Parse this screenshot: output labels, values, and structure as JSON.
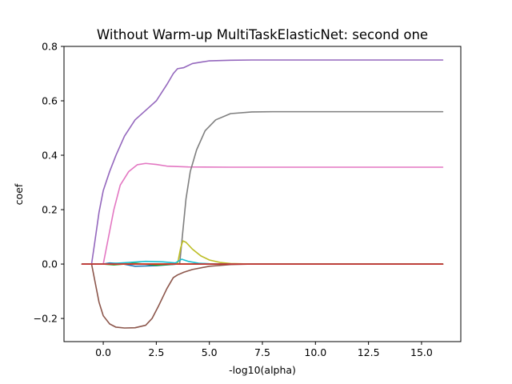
{
  "chart_data": {
    "type": "line",
    "title": "Without Warm-up MultiTaskElasticNet: second one",
    "xlabel": "-log10(alpha)",
    "ylabel": "coef",
    "xlim": [
      -1.85,
      16.85
    ],
    "ylim": [
      -0.285,
      0.8
    ],
    "grid": false,
    "legend": "none",
    "xticks": [
      0.0,
      2.5,
      5.0,
      7.5,
      10.0,
      12.5,
      15.0
    ],
    "xtick_labels": [
      "0.0",
      "2.5",
      "5.0",
      "7.5",
      "10.0",
      "12.5",
      "15.0"
    ],
    "yticks": [
      -0.2,
      0.0,
      0.2,
      0.4,
      0.6,
      0.8
    ],
    "ytick_labels": [
      "−0.2",
      "0.0",
      "0.2",
      "0.4",
      "0.6",
      "0.8"
    ],
    "series": [
      {
        "color": "#1f77b4",
        "points": [
          [
            -1,
            0
          ],
          [
            0,
            0
          ],
          [
            0.3,
            0.004
          ],
          [
            0.8,
            0.002
          ],
          [
            1.5,
            -0.008
          ],
          [
            2.5,
            -0.006
          ],
          [
            3.5,
            0.0
          ],
          [
            16,
            0
          ]
        ]
      },
      {
        "color": "#ff7f0e",
        "points": [
          [
            -1,
            0
          ],
          [
            16,
            0
          ]
        ]
      },
      {
        "color": "#2ca02c",
        "points": [
          [
            -1,
            0
          ],
          [
            0,
            0
          ],
          [
            0.5,
            -0.003
          ],
          [
            1.5,
            0.003
          ],
          [
            2.5,
            -0.004
          ],
          [
            3.5,
            0.0
          ],
          [
            16,
            0
          ]
        ]
      },
      {
        "color": "#9467bd",
        "points": [
          [
            -1,
            0
          ],
          [
            -0.55,
            0
          ],
          [
            -0.4,
            0.08
          ],
          [
            -0.2,
            0.19
          ],
          [
            0.0,
            0.27
          ],
          [
            0.3,
            0.34
          ],
          [
            0.6,
            0.4
          ],
          [
            1.0,
            0.47
          ],
          [
            1.5,
            0.53
          ],
          [
            2.0,
            0.565
          ],
          [
            2.5,
            0.6
          ],
          [
            3.0,
            0.66
          ],
          [
            3.3,
            0.7
          ],
          [
            3.5,
            0.718
          ],
          [
            3.8,
            0.722
          ],
          [
            4.2,
            0.737
          ],
          [
            5.0,
            0.747
          ],
          [
            6.0,
            0.749
          ],
          [
            7.0,
            0.75
          ],
          [
            16,
            0.75
          ]
        ]
      },
      {
        "color": "#8c564b",
        "points": [
          [
            -1,
            0
          ],
          [
            -0.55,
            0
          ],
          [
            -0.4,
            -0.06
          ],
          [
            -0.2,
            -0.14
          ],
          [
            0.0,
            -0.19
          ],
          [
            0.3,
            -0.22
          ],
          [
            0.6,
            -0.232
          ],
          [
            1.0,
            -0.235
          ],
          [
            1.5,
            -0.234
          ],
          [
            2.0,
            -0.225
          ],
          [
            2.3,
            -0.2
          ],
          [
            2.6,
            -0.155
          ],
          [
            3.0,
            -0.09
          ],
          [
            3.3,
            -0.05
          ],
          [
            3.5,
            -0.04
          ],
          [
            3.8,
            -0.03
          ],
          [
            4.2,
            -0.02
          ],
          [
            5.0,
            -0.008
          ],
          [
            6.0,
            -0.002
          ],
          [
            7.0,
            0
          ],
          [
            16,
            0
          ]
        ]
      },
      {
        "color": "#e377c2",
        "points": [
          [
            -1,
            0
          ],
          [
            0,
            0
          ],
          [
            0.2,
            0.08
          ],
          [
            0.5,
            0.2
          ],
          [
            0.8,
            0.29
          ],
          [
            1.2,
            0.34
          ],
          [
            1.6,
            0.365
          ],
          [
            2.0,
            0.37
          ],
          [
            2.5,
            0.366
          ],
          [
            3.0,
            0.36
          ],
          [
            4.0,
            0.357
          ],
          [
            6.0,
            0.356
          ],
          [
            16,
            0.356
          ]
        ]
      },
      {
        "color": "#7f7f7f",
        "points": [
          [
            -1,
            0
          ],
          [
            3.6,
            0
          ],
          [
            3.75,
            0.12
          ],
          [
            3.9,
            0.24
          ],
          [
            4.1,
            0.34
          ],
          [
            4.4,
            0.42
          ],
          [
            4.8,
            0.49
          ],
          [
            5.3,
            0.53
          ],
          [
            6.0,
            0.553
          ],
          [
            7.0,
            0.559
          ],
          [
            8.0,
            0.56
          ],
          [
            16,
            0.56
          ]
        ]
      },
      {
        "color": "#bcbd22",
        "points": [
          [
            -1,
            0
          ],
          [
            3.5,
            0
          ],
          [
            3.65,
            0.06
          ],
          [
            3.75,
            0.085
          ],
          [
            3.9,
            0.08
          ],
          [
            4.2,
            0.055
          ],
          [
            4.6,
            0.03
          ],
          [
            5.0,
            0.015
          ],
          [
            5.5,
            0.006
          ],
          [
            6.0,
            0.002
          ],
          [
            7.0,
            0
          ],
          [
            16,
            0
          ]
        ]
      },
      {
        "color": "#17becf",
        "points": [
          [
            -1,
            0
          ],
          [
            0,
            0
          ],
          [
            1.0,
            0.005
          ],
          [
            2.0,
            0.01
          ],
          [
            2.8,
            0.008
          ],
          [
            3.4,
            0.004
          ],
          [
            3.7,
            0.018
          ],
          [
            4.0,
            0.01
          ],
          [
            4.5,
            0.003
          ],
          [
            5.0,
            0.001
          ],
          [
            6.0,
            0
          ],
          [
            16,
            0
          ]
        ]
      },
      {
        "color": "#d62728",
        "points": [
          [
            -1,
            0
          ],
          [
            16,
            0
          ]
        ]
      }
    ]
  }
}
